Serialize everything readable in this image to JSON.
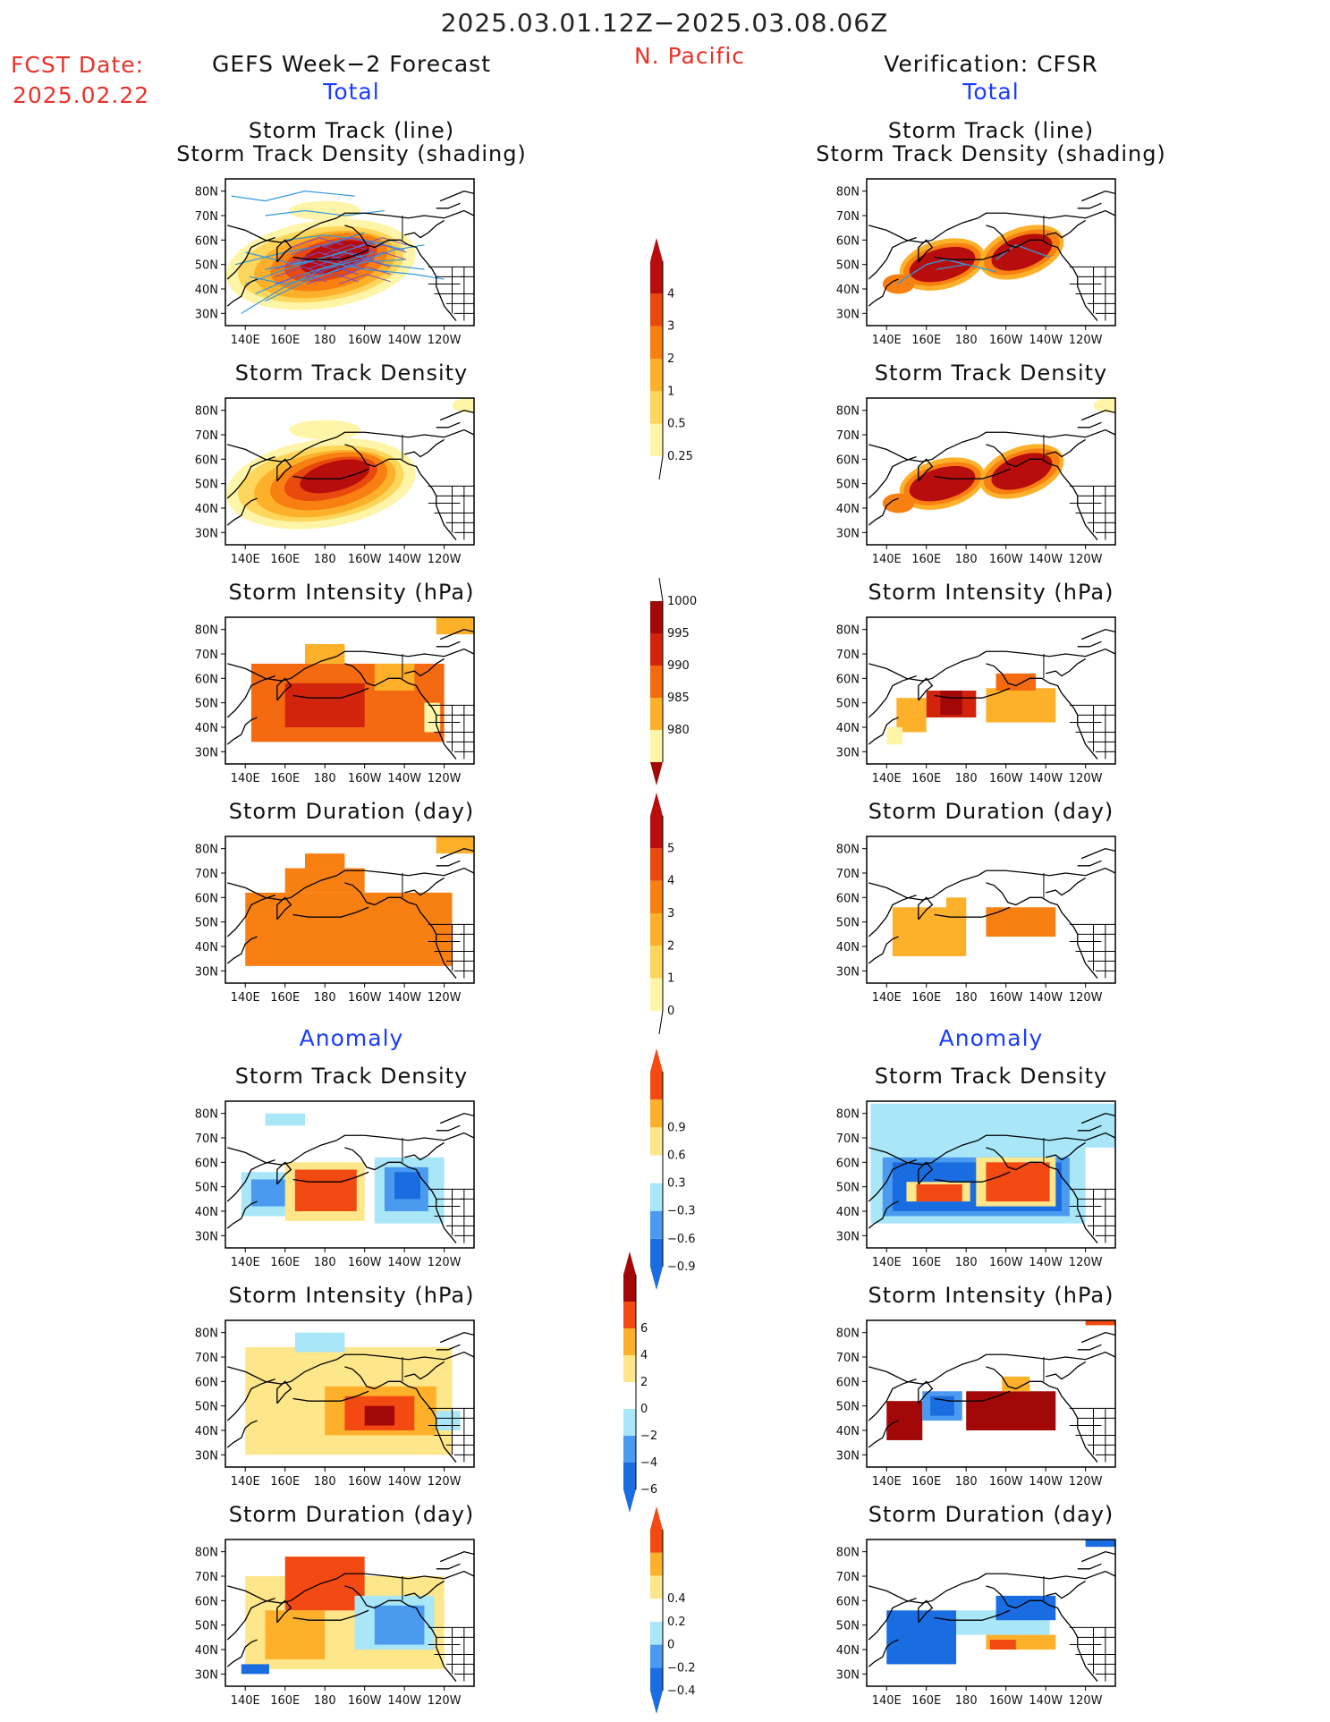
{
  "header": {
    "date_range": "2025.03.01.12Z−2025.03.08.06Z",
    "region": "N. Pacific",
    "fcst_label": "FCST Date:",
    "fcst_date": "2025.02.22",
    "left_title": "GEFS Week−2 Forecast",
    "right_title": "Verification: CFSR"
  },
  "sections": {
    "total": "Total",
    "anomaly": "Anomaly"
  },
  "panel_titles": {
    "track_line": "Storm Track (line)",
    "track_shading": "Storm Track Density (shading)",
    "density": "Storm Track Density",
    "intensity": "Storm Intensity (hPa)",
    "duration": "Storm Duration (day)"
  },
  "axes": {
    "x_ticks": [
      "140E",
      "160E",
      "180",
      "160W",
      "140W",
      "120W"
    ],
    "y_ticks": [
      "80N",
      "70N",
      "60N",
      "50N",
      "40N",
      "30N"
    ]
  },
  "colorbars": {
    "density_total": [
      "4",
      "3",
      "2",
      "1",
      "0.5",
      "0.25"
    ],
    "intensity_total": [
      "1000",
      "995",
      "990",
      "985",
      "980"
    ],
    "duration_total": [
      "5",
      "4",
      "3",
      "2",
      "1",
      "0"
    ],
    "density_anom": [
      "0.9",
      "0.6",
      "0.3",
      "−0.3",
      "−0.6",
      "−0.9"
    ],
    "intensity_anom": [
      "6",
      "4",
      "2",
      "0",
      "−2",
      "−4",
      "−6"
    ],
    "duration_anom": [
      "0.4",
      "0.2",
      "0",
      "−0.2",
      "−0.4"
    ]
  },
  "colors": {
    "warm": [
      "#fff5a8",
      "#fed65c",
      "#fdb02a",
      "#f88012",
      "#e84a0d",
      "#b80d0d"
    ],
    "intensity": [
      "#fff5a8",
      "#fdb02a",
      "#f36a10",
      "#d2240d",
      "#a30808"
    ],
    "anom": [
      "#1a6de0",
      "#4a9af0",
      "#a8e6f8",
      "#ffffff",
      "#fee68a",
      "#fdb02a",
      "#f24a12"
    ],
    "track_lines": "#3399dd",
    "title_blue": "#1a3cff",
    "title_red": "#e8322a"
  }
}
